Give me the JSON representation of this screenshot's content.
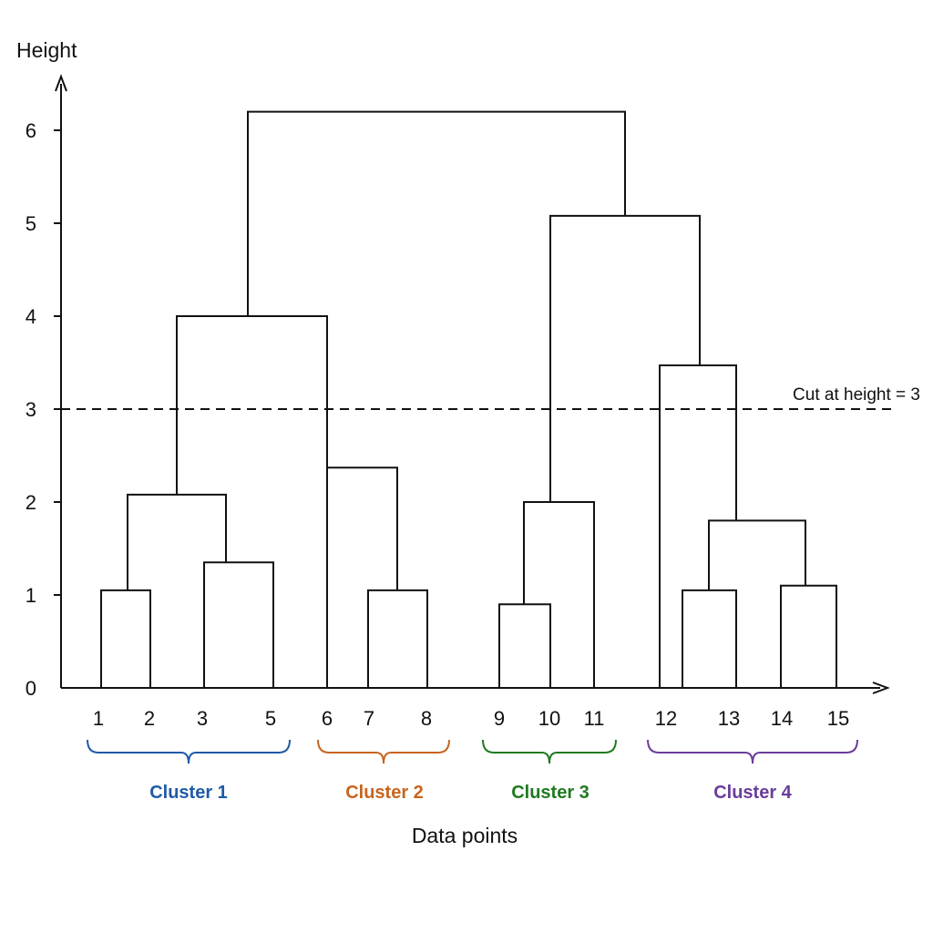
{
  "chart_data": {
    "type": "dendrogram",
    "ylabel": "Height",
    "xlabel": "Data points",
    "ylim": [
      0,
      6.4
    ],
    "yticks": [
      0,
      1,
      2,
      3,
      4,
      5,
      6
    ],
    "leaves": [
      "1",
      "2",
      "3",
      "5",
      "6",
      "7",
      "8",
      "9",
      "10",
      "11",
      "12",
      "13",
      "14",
      "15"
    ],
    "merges": [
      {
        "left": "1",
        "right": "2",
        "height": 1.05
      },
      {
        "left": "3",
        "right": "5",
        "height": 1.35
      },
      {
        "left": "1-2",
        "right": "3-5",
        "height": 2.08
      },
      {
        "left": "7",
        "right": "8",
        "height": 1.05
      },
      {
        "left": "6",
        "right": "7-8",
        "height": 2.37
      },
      {
        "left": "1-5",
        "right": "6-8",
        "height": 4.0
      },
      {
        "left": "9",
        "right": "10",
        "height": 0.9
      },
      {
        "left": "9-10",
        "right": "11",
        "height": 2.0
      },
      {
        "left": "12",
        "right": "13",
        "height": 1.05
      },
      {
        "left": "14",
        "right": "15",
        "height": 1.1
      },
      {
        "left": "12-13",
        "right": "14-15",
        "height": 1.8
      },
      {
        "left": "cluster-4-stem",
        "right": "12-15",
        "height": 3.47
      },
      {
        "left": "9-11",
        "right": "12-15",
        "height": 5.08
      },
      {
        "left": "1-8",
        "right": "9-15",
        "height": 6.2
      }
    ],
    "cut": {
      "height": 3,
      "label": "Cut at height = 3"
    },
    "clusters": [
      {
        "label": "Cluster 1",
        "leaves": [
          "1",
          "2",
          "3",
          "5"
        ],
        "color": "#1f5aa6"
      },
      {
        "label": "Cluster 2",
        "leaves": [
          "6",
          "7",
          "8"
        ],
        "color": "#c8641e"
      },
      {
        "label": "Cluster 3",
        "leaves": [
          "9",
          "10",
          "11"
        ],
        "color": "#1f7a1f"
      },
      {
        "label": "Cluster 4",
        "leaves": [
          "12",
          "13",
          "14",
          "15"
        ],
        "color": "#6a3d9a"
      }
    ]
  }
}
